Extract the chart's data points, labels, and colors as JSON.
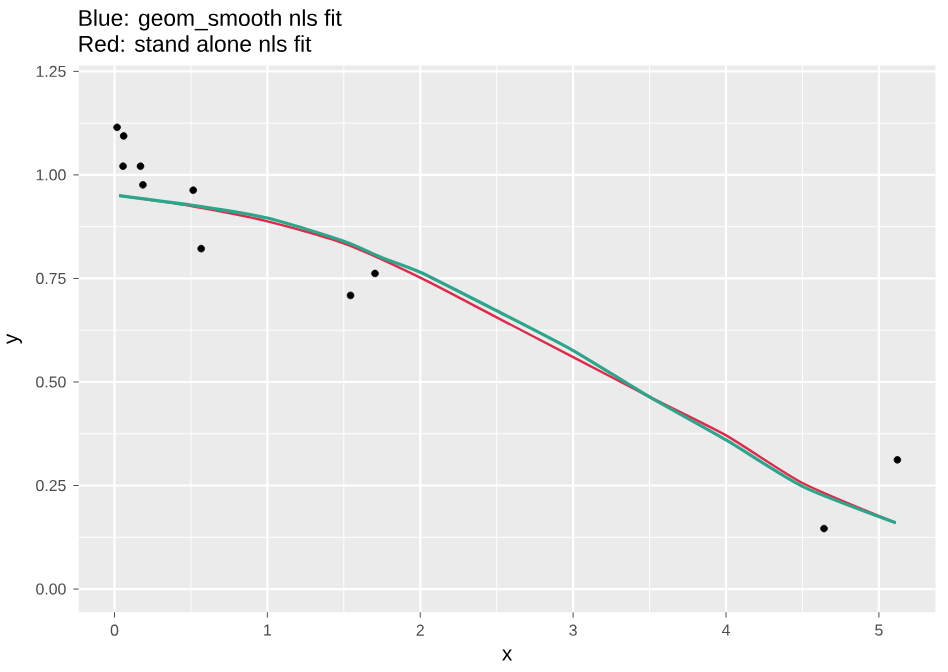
{
  "chart_data": {
    "type": "scatter",
    "title": "Blue: geom_smooth nls fit",
    "subtitle": "Red: stand alone nls fit",
    "xlabel": "x",
    "ylabel": "y",
    "xlim": [
      -0.234,
      5.37
    ],
    "ylim": [
      -0.056,
      1.264
    ],
    "xticks": [
      0,
      1,
      2,
      3,
      4,
      5
    ],
    "yticks": [
      {
        "value": 0,
        "label": "0.00"
      },
      {
        "value": 0.25,
        "label": "0.25"
      },
      {
        "value": 0.5,
        "label": "0.50"
      },
      {
        "value": 0.75,
        "label": "0.75"
      },
      {
        "value": 1,
        "label": "1.00"
      },
      {
        "value": 1.25,
        "label": "1.25"
      }
    ],
    "grid": true,
    "series": [
      {
        "marker": "circle",
        "color": "#000000",
        "x": [
          0.017,
          0.06,
          0.056,
          0.17,
          0.186,
          0.515,
          0.567,
          1.544,
          1.704,
          4.641,
          5.121
        ],
        "values": [
          1.115,
          1.094,
          1.021,
          1.021,
          0.976,
          0.963,
          0.822,
          0.709,
          0.762,
          0.146,
          0.312
        ]
      },
      {
        "type": "line",
        "marker": "none",
        "color": "#e0294a",
        "x": [
          0.03,
          0.5,
          1,
          1.5,
          2,
          2.5,
          3,
          3.5,
          4,
          4.5,
          5.11
        ],
        "values": [
          0.95,
          0.925,
          0.888,
          0.835,
          0.752,
          0.656,
          0.56,
          0.464,
          0.371,
          0.256,
          0.16
        ]
      },
      {
        "type": "line",
        "marker": "none",
        "color": "#2da58a",
        "x": [
          0.03,
          0.5,
          1,
          1.5,
          1.75,
          2,
          2.5,
          3,
          3.5,
          4,
          4.5,
          5.11
        ],
        "values": [
          0.95,
          0.927,
          0.896,
          0.84,
          0.8,
          0.765,
          0.672,
          0.576,
          0.464,
          0.36,
          0.248,
          0.16
        ]
      }
    ]
  }
}
